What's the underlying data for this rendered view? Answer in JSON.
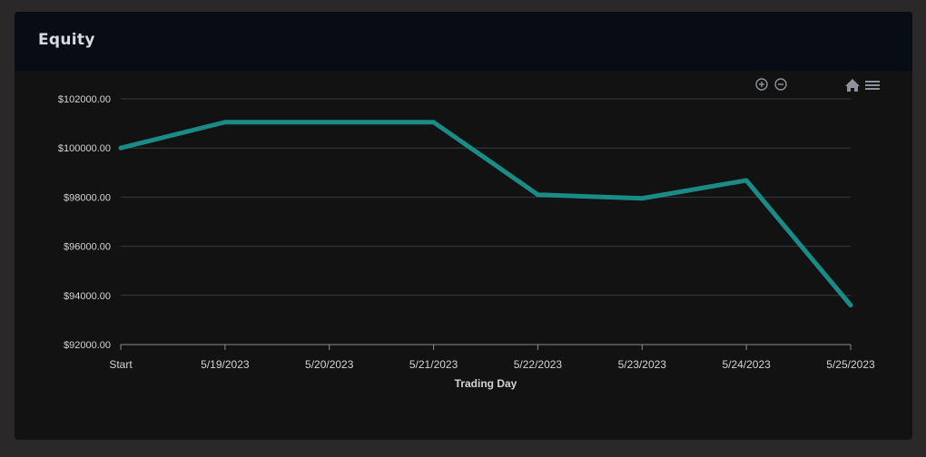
{
  "panel": {
    "title": "Equity"
  },
  "toolbar": {
    "zoom_in_icon": "zoom-in-icon",
    "zoom_out_icon": "zoom-out-icon",
    "reset_icon": "home-icon",
    "menu_icon": "menu-icon"
  },
  "colors": {
    "line": "#1a8c87",
    "grid": "#3a3a42",
    "axis_text": "#d2d4d8",
    "background": "#121212",
    "header": "#080c14"
  },
  "chart_data": {
    "type": "line",
    "title": "",
    "xlabel": "Trading Day",
    "ylabel": "",
    "categories": [
      "Start",
      "5/19/2023",
      "5/20/2023",
      "5/21/2023",
      "5/22/2023",
      "5/23/2023",
      "5/24/2023",
      "5/25/2023"
    ],
    "series": [
      {
        "values": [
          100000,
          101050,
          101050,
          101050,
          98100,
          97950,
          98680,
          93600
        ]
      }
    ],
    "ylim": [
      92000,
      102000
    ],
    "yticks": [
      92000,
      94000,
      96000,
      98000,
      100000,
      102000
    ],
    "ytick_labels": [
      "$92000.00",
      "$94000.00",
      "$96000.00",
      "$98000.00",
      "$100000.00",
      "$102000.00"
    ],
    "grid": true,
    "legend": "none"
  }
}
